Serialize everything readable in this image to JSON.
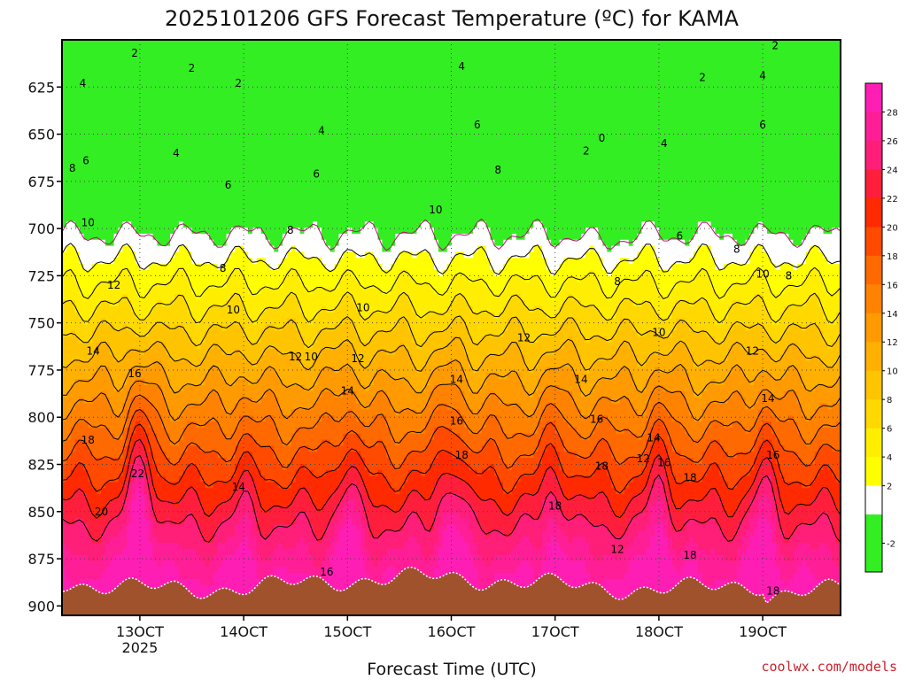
{
  "chart_data": {
    "type": "heatmap",
    "title": "2025101206 GFS Forecast Temperature (ºC) for KAMA",
    "xlabel": "Forecast Time (UTC)",
    "ylabel": "",
    "x_ticks": [
      {
        "label": "13OCT",
        "sub": "2025",
        "day": 13
      },
      {
        "label": "14OCT",
        "sub": "",
        "day": 14
      },
      {
        "label": "15OCT",
        "sub": "",
        "day": 15
      },
      {
        "label": "16OCT",
        "sub": "",
        "day": 16
      },
      {
        "label": "17OCT",
        "sub": "",
        "day": 17
      },
      {
        "label": "18OCT",
        "sub": "",
        "day": 18
      },
      {
        "label": "19OCT",
        "sub": "",
        "day": 19
      }
    ],
    "xlim": [
      12.25,
      19.75
    ],
    "y_ticks": [
      625,
      650,
      675,
      700,
      725,
      750,
      775,
      800,
      825,
      850,
      875,
      900
    ],
    "ylim": [
      600,
      905
    ],
    "y_inverted": true,
    "colorbar": {
      "ticks": [
        "28",
        "26",
        "24",
        "22",
        "20",
        "18",
        "16",
        "14",
        "12",
        "10",
        "8",
        "6",
        "4",
        "2",
        "-2"
      ],
      "levels": [
        -4,
        -2,
        0,
        2,
        4,
        6,
        8,
        10,
        12,
        14,
        16,
        18,
        20,
        22,
        24,
        26,
        28,
        30
      ],
      "colors": [
        "#33ee22",
        "#33ee22",
        "#ffffff",
        "#ffff00",
        "#ffee00",
        "#ffd800",
        "#ffc400",
        "#ffb000",
        "#ff9a00",
        "#ff8200",
        "#ff6a00",
        "#ff4a00",
        "#ff2a00",
        "#ff1e3c",
        "#ff1e78",
        "#ff1e96",
        "#ff1eb4"
      ]
    },
    "ground_color": "#a0522d",
    "surface_pressure": 888,
    "grid": true,
    "isotherm_labels": [
      {
        "text": "2",
        "day": 12.95,
        "p": 607
      },
      {
        "text": "2",
        "day": 13.5,
        "p": 615
      },
      {
        "text": "2",
        "day": 13.95,
        "p": 623
      },
      {
        "text": "2",
        "day": 18.42,
        "p": 620
      },
      {
        "text": "2",
        "day": 19.12,
        "p": 603
      },
      {
        "text": "2",
        "day": 17.3,
        "p": 659
      },
      {
        "text": "0",
        "day": 17.45,
        "p": 652
      },
      {
        "text": "4",
        "day": 12.45,
        "p": 623
      },
      {
        "text": "4",
        "day": 13.35,
        "p": 660
      },
      {
        "text": "4",
        "day": 14.75,
        "p": 648
      },
      {
        "text": "4",
        "day": 16.1,
        "p": 614
      },
      {
        "text": "4",
        "day": 18.05,
        "p": 655
      },
      {
        "text": "4",
        "day": 19.0,
        "p": 619
      },
      {
        "text": "6",
        "day": 12.48,
        "p": 664
      },
      {
        "text": "6",
        "day": 13.85,
        "p": 677
      },
      {
        "text": "6",
        "day": 14.7,
        "p": 671
      },
      {
        "text": "6",
        "day": 16.25,
        "p": 645
      },
      {
        "text": "6",
        "day": 18.2,
        "p": 704
      },
      {
        "text": "6",
        "day": 19.0,
        "p": 645
      },
      {
        "text": "8",
        "day": 12.35,
        "p": 668
      },
      {
        "text": "8",
        "day": 13.8,
        "p": 721
      },
      {
        "text": "8",
        "day": 14.45,
        "p": 701
      },
      {
        "text": "8",
        "day": 16.45,
        "p": 669
      },
      {
        "text": "8",
        "day": 17.6,
        "p": 728
      },
      {
        "text": "8",
        "day": 18.75,
        "p": 711
      },
      {
        "text": "8",
        "day": 19.25,
        "p": 725
      },
      {
        "text": "10",
        "day": 12.5,
        "p": 697
      },
      {
        "text": "10",
        "day": 13.9,
        "p": 743
      },
      {
        "text": "10",
        "day": 14.65,
        "p": 768
      },
      {
        "text": "10",
        "day": 15.15,
        "p": 742
      },
      {
        "text": "10",
        "day": 15.85,
        "p": 690
      },
      {
        "text": "10",
        "day": 18.0,
        "p": 755
      },
      {
        "text": "10",
        "day": 19.0,
        "p": 724
      },
      {
        "text": "12",
        "day": 12.75,
        "p": 730
      },
      {
        "text": "12",
        "day": 14.5,
        "p": 768
      },
      {
        "text": "12",
        "day": 15.1,
        "p": 769
      },
      {
        "text": "12",
        "day": 16.7,
        "p": 758
      },
      {
        "text": "12",
        "day": 17.85,
        "p": 822
      },
      {
        "text": "12",
        "day": 18.9,
        "p": 765
      },
      {
        "text": "12",
        "day": 17.6,
        "p": 870
      },
      {
        "text": "14",
        "day": 12.55,
        "p": 765
      },
      {
        "text": "14",
        "day": 13.95,
        "p": 837
      },
      {
        "text": "14",
        "day": 15.0,
        "p": 786
      },
      {
        "text": "14",
        "day": 16.05,
        "p": 780
      },
      {
        "text": "14",
        "day": 17.25,
        "p": 780
      },
      {
        "text": "14",
        "day": 17.95,
        "p": 811
      },
      {
        "text": "14",
        "day": 19.05,
        "p": 790
      },
      {
        "text": "16",
        "day": 12.95,
        "p": 777
      },
      {
        "text": "16",
        "day": 14.8,
        "p": 882
      },
      {
        "text": "16",
        "day": 16.05,
        "p": 802
      },
      {
        "text": "16",
        "day": 17.4,
        "p": 801
      },
      {
        "text": "16",
        "day": 18.05,
        "p": 824
      },
      {
        "text": "16",
        "day": 19.1,
        "p": 820
      },
      {
        "text": "18",
        "day": 12.5,
        "p": 812
      },
      {
        "text": "18",
        "day": 16.1,
        "p": 820
      },
      {
        "text": "18",
        "day": 17.0,
        "p": 847
      },
      {
        "text": "18",
        "day": 17.45,
        "p": 826
      },
      {
        "text": "18",
        "day": 18.3,
        "p": 832
      },
      {
        "text": "18",
        "day": 18.3,
        "p": 873
      },
      {
        "text": "18",
        "day": 19.1,
        "p": 892
      },
      {
        "text": "20",
        "day": 12.63,
        "p": 850
      },
      {
        "text": "22",
        "day": 12.98,
        "p": 830
      }
    ]
  },
  "watermark": "coolwx.com/models"
}
